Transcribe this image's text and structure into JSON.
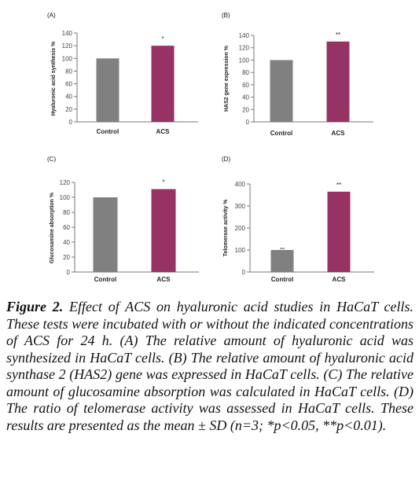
{
  "chart_data": [
    {
      "type": "bar",
      "panel_label": "(A)",
      "ylabel": "Hyaluronic acid synthesis %",
      "categories": [
        "Control",
        "ACS"
      ],
      "values": [
        100,
        120
      ],
      "significance": [
        "",
        "*"
      ],
      "ylim": [
        0,
        140
      ],
      "yticks": [
        "0",
        "20",
        "40",
        "60",
        "80",
        "100",
        "120",
        "140"
      ],
      "colors": [
        "#808080",
        "#973264"
      ]
    },
    {
      "type": "bar",
      "panel_label": "(B)",
      "ylabel": "HAS2 gene expression %",
      "categories": [
        "Control",
        "ACS"
      ],
      "values": [
        100,
        130
      ],
      "significance": [
        "",
        "**"
      ],
      "ylim": [
        0,
        140
      ],
      "yticks": [
        "0",
        "20",
        "40",
        "60",
        "80",
        "100",
        "120",
        "140"
      ],
      "colors": [
        "#808080",
        "#973264"
      ]
    },
    {
      "type": "bar",
      "panel_label": "(C)",
      "ylabel": "Glucosamine absorption %",
      "categories": [
        "Control",
        "ACS"
      ],
      "values": [
        100,
        111
      ],
      "significance": [
        "",
        "*"
      ],
      "ylim": [
        0,
        120
      ],
      "yticks": [
        "0",
        "20",
        "40",
        "60",
        "80",
        "100",
        "120"
      ],
      "colors": [
        "#808080",
        "#973264"
      ]
    },
    {
      "type": "bar",
      "panel_label": "(D)",
      "ylabel": "Telomerase activity %",
      "categories": [
        "Control",
        "ACS"
      ],
      "values": [
        100,
        365
      ],
      "significance": [
        "",
        "**"
      ],
      "ylim": [
        0,
        400
      ],
      "yticks": [
        "0",
        "100",
        "200",
        "300",
        "400"
      ],
      "colors": [
        "#808080",
        "#973264"
      ]
    }
  ],
  "caption": {
    "lead": "Figure 2.",
    "text": " Effect of ACS on hyaluronic acid studies in HaCaT cells. These tests were incubated with or without the indicated concentrations of ACS for 24 h. (A) The relative amount of hyaluronic acid was synthesized in HaCaT cells. (B) The relative amount of hyaluronic acid synthase 2 (HAS2) gene was expressed in HaCaT cells. (C) The relative amount of glucosamine absorption was calculated in HaCaT cells. (D) The ratio of telomerase activity was assessed in HaCaT cells. These results are presented as the mean ± SD (n=3; *p<0.05, **p<0.01)."
  }
}
